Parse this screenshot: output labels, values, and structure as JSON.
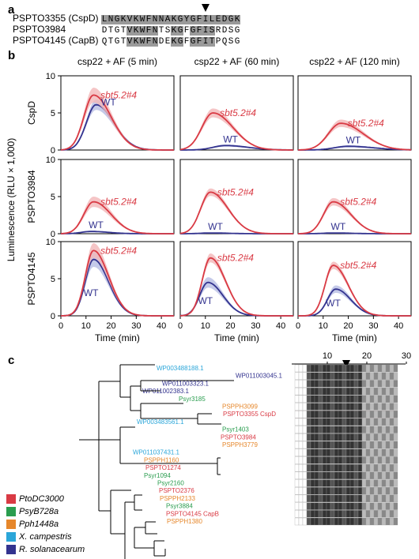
{
  "panel_a": {
    "letter": "a",
    "rows": [
      {
        "label": "PSPTO3355 (CspD)",
        "seq": "LNGKVKWFNNAKGYGFILEDGK",
        "hl": [
          1,
          1,
          1,
          1,
          1,
          1,
          1,
          1,
          1,
          1,
          1,
          1,
          1,
          1,
          1,
          1,
          1,
          1,
          1,
          1,
          1,
          1
        ]
      },
      {
        "label": "PSPTO3984",
        "seq": "DTGTVKWFNTSKGFGFISRDSG",
        "hl": [
          0,
          0,
          0,
          0,
          1,
          1,
          1,
          1,
          1,
          0,
          0,
          1,
          1,
          0,
          1,
          1,
          1,
          1,
          0,
          0,
          0,
          0
        ]
      },
      {
        "label": "PSPTO4145 (CapB)",
        "seq": "QTGTVKWFNDEKGFGFITPQSG",
        "hl": [
          0,
          0,
          0,
          0,
          1,
          1,
          1,
          1,
          1,
          0,
          0,
          1,
          1,
          0,
          1,
          1,
          1,
          1,
          0,
          0,
          0,
          0
        ]
      }
    ]
  },
  "panel_b": {
    "letter": "b",
    "column_titles": [
      "csp22 + AF (5 min)",
      "csp22 + AF (60 min)",
      "csp22 + AF (120 min)"
    ],
    "row_titles": [
      "CspD",
      "PSPTO3984",
      "PSPTO4145"
    ],
    "y_axis_label": "Luminescence (RLU × 1,000)",
    "x_axis_label": "Time (min)",
    "x_ticks": [
      "0",
      "10",
      "20",
      "30",
      "40"
    ],
    "y_ticks": [
      "0",
      "5",
      "10"
    ],
    "mutant_label": "sbt5.2#4",
    "wt_label": "WT",
    "colors": {
      "mutant": "#d93a44",
      "mutant_band": "#f3b6b8",
      "wt": "#33338f",
      "wt_band": "#b7bde3"
    }
  },
  "chart_data": [
    {
      "type": "line",
      "row": "CspD",
      "column": "csp22 + AF (5 min)",
      "xlim": [
        0,
        45
      ],
      "ylim": [
        0,
        10
      ],
      "series": [
        {
          "name": "sbt5.2#4",
          "peak": 7.4,
          "peak_time": 13,
          "width": 7,
          "band": 1.0
        },
        {
          "name": "WT",
          "peak": 6.1,
          "peak_time": 14,
          "width": 7,
          "band": 0.7
        }
      ]
    },
    {
      "type": "line",
      "row": "CspD",
      "column": "csp22 + AF (60 min)",
      "xlim": [
        0,
        45
      ],
      "ylim": [
        0,
        10
      ],
      "series": [
        {
          "name": "sbt5.2#4",
          "peak": 5.0,
          "peak_time": 13,
          "width": 8,
          "band": 0.6
        },
        {
          "name": "WT",
          "peak": 0.6,
          "peak_time": 18,
          "width": 9,
          "band": 0.15
        }
      ]
    },
    {
      "type": "line",
      "row": "CspD",
      "column": "csp22 + AF (120 min)",
      "xlim": [
        0,
        45
      ],
      "ylim": [
        0,
        10
      ],
      "series": [
        {
          "name": "sbt5.2#4",
          "peak": 3.6,
          "peak_time": 17,
          "width": 9,
          "band": 0.5
        },
        {
          "name": "WT",
          "peak": 0.5,
          "peak_time": 20,
          "width": 10,
          "band": 0.15
        }
      ]
    },
    {
      "type": "line",
      "row": "PSPTO3984",
      "column": "csp22 + AF (5 min)",
      "xlim": [
        0,
        45
      ],
      "ylim": [
        0,
        10
      ],
      "series": [
        {
          "name": "sbt5.2#4",
          "peak": 4.3,
          "peak_time": 13,
          "width": 7,
          "band": 0.7
        },
        {
          "name": "WT",
          "peak": 0.3,
          "peak_time": 12,
          "width": 7,
          "band": 0.1
        }
      ]
    },
    {
      "type": "line",
      "row": "PSPTO3984",
      "column": "csp22 + AF (60 min)",
      "xlim": [
        0,
        45
      ],
      "ylim": [
        0,
        10
      ],
      "series": [
        {
          "name": "sbt5.2#4",
          "peak": 5.6,
          "peak_time": 12,
          "width": 7,
          "band": 0.5
        },
        {
          "name": "WT",
          "peak": 0.1,
          "peak_time": 12,
          "width": 7,
          "band": 0.05
        }
      ]
    },
    {
      "type": "line",
      "row": "PSPTO3984",
      "column": "csp22 + AF (120 min)",
      "xlim": [
        0,
        45
      ],
      "ylim": [
        0,
        10
      ],
      "series": [
        {
          "name": "sbt5.2#4",
          "peak": 4.3,
          "peak_time": 14,
          "width": 7,
          "band": 0.5
        },
        {
          "name": "WT",
          "peak": 0.1,
          "peak_time": 14,
          "width": 7,
          "band": 0.05
        }
      ]
    },
    {
      "type": "line",
      "row": "PSPTO4145",
      "column": "csp22 + AF (5 min)",
      "xlim": [
        0,
        45
      ],
      "ylim": [
        0,
        10
      ],
      "series": [
        {
          "name": "sbt5.2#4",
          "peak": 8.8,
          "peak_time": 13,
          "width": 6,
          "band": 1.0
        },
        {
          "name": "WT",
          "peak": 7.6,
          "peak_time": 13,
          "width": 6,
          "band": 1.0
        }
      ]
    },
    {
      "type": "line",
      "row": "PSPTO4145",
      "column": "csp22 + AF (60 min)",
      "xlim": [
        0,
        45
      ],
      "ylim": [
        0,
        10
      ],
      "series": [
        {
          "name": "sbt5.2#4",
          "peak": 7.8,
          "peak_time": 12,
          "width": 6,
          "band": 0.6
        },
        {
          "name": "WT",
          "peak": 4.5,
          "peak_time": 11,
          "width": 6,
          "band": 0.7
        }
      ]
    },
    {
      "type": "line",
      "row": "PSPTO4145",
      "column": "csp22 + AF (120 min)",
      "xlim": [
        0,
        45
      ],
      "ylim": [
        0,
        10
      ],
      "series": [
        {
          "name": "sbt5.2#4",
          "peak": 6.8,
          "peak_time": 14,
          "width": 6,
          "band": 0.5
        },
        {
          "name": "WT",
          "peak": 3.6,
          "peak_time": 15,
          "width": 6,
          "band": 0.5
        }
      ]
    }
  ],
  "panel_c": {
    "letter": "c",
    "leaves": [
      {
        "name": "WP003488188.1",
        "color": "#2ba6d9"
      },
      {
        "name": "WP011003045.1",
        "color": "#33338f"
      },
      {
        "name": "WP011003323.1",
        "color": "#33338f"
      },
      {
        "name": "WP011002383.1",
        "color": "#33338f"
      },
      {
        "name": "Psyr3185",
        "color": "#2a9d4f"
      },
      {
        "name": "PSPPH3099",
        "color": "#e6872b"
      },
      {
        "name": "PSPTO3355 CspD",
        "color": "#d93a44"
      },
      {
        "name": "WP003483561.1",
        "color": "#2ba6d9"
      },
      {
        "name": "Psyr1403",
        "color": "#2a9d4f"
      },
      {
        "name": "PSPTO3984",
        "color": "#d93a44"
      },
      {
        "name": "PSPPH3779",
        "color": "#e6872b"
      },
      {
        "name": "WP011037431.1",
        "color": "#2ba6d9"
      },
      {
        "name": "PSPPH1160",
        "color": "#e6872b"
      },
      {
        "name": "PSPTO1274",
        "color": "#d93a44"
      },
      {
        "name": "Psyr1094",
        "color": "#2a9d4f"
      },
      {
        "name": "Psyr2160",
        "color": "#2a9d4f"
      },
      {
        "name": "PSPTO2376",
        "color": "#d93a44"
      },
      {
        "name": "PSPPH2133",
        "color": "#e6872b"
      },
      {
        "name": "Psyr3884",
        "color": "#2a9d4f"
      },
      {
        "name": "PSPTO4145 CapB",
        "color": "#d93a44"
      },
      {
        "name": "PSPPH1380",
        "color": "#e6872b"
      }
    ],
    "legend": [
      {
        "label": "PtoDC3000",
        "color": "#d93a44"
      },
      {
        "label": "PsyB728a",
        "color": "#2a9d4f"
      },
      {
        "label": "Pph1448a",
        "color": "#e6872b"
      },
      {
        "label": "X. campestris",
        "color": "#2ba6d9"
      },
      {
        "label": "R. solanacearum",
        "color": "#33338f"
      }
    ],
    "alignment_ticks": [
      "10",
      "20",
      "30"
    ]
  }
}
